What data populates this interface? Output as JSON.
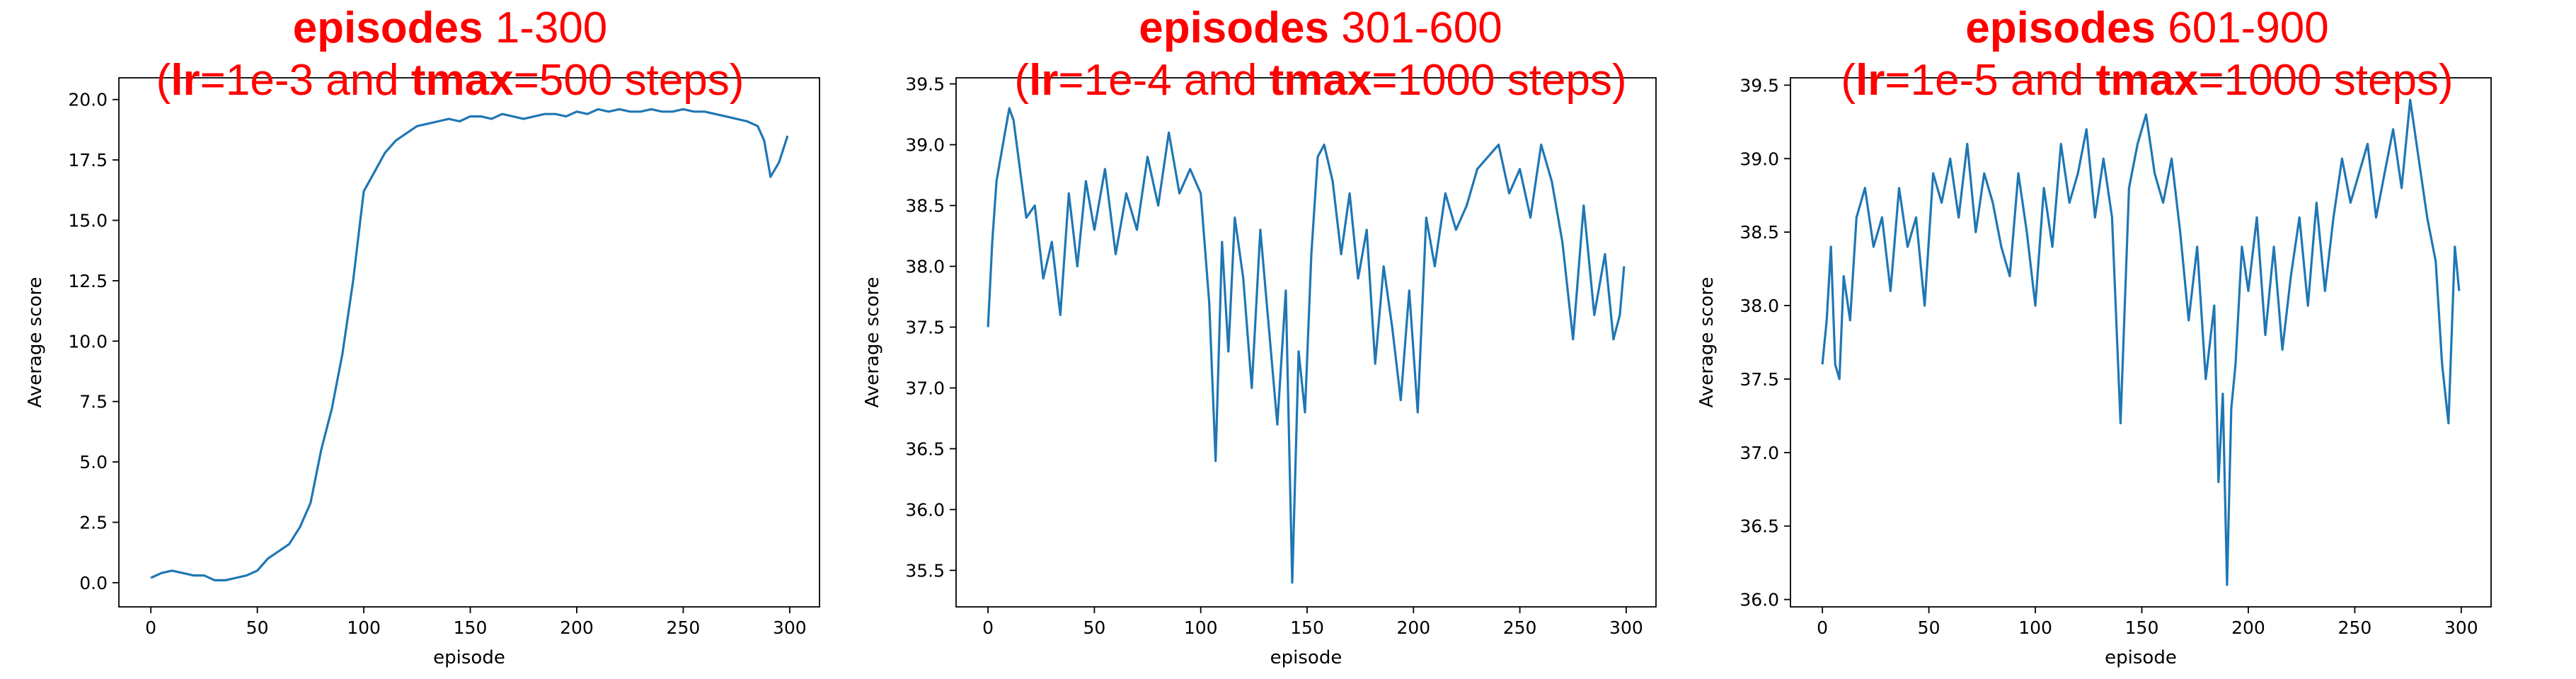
{
  "figure": {
    "title_color": "#ff0000",
    "line_color": "#1f77b4"
  },
  "chart_data": [
    {
      "type": "line",
      "title": "episodes 1-300",
      "title_bold": "episodes",
      "title_rest": "1-300",
      "subtitle_parts": [
        "(",
        "lr",
        "=1e-3 and ",
        "tmax",
        "=500 steps)"
      ],
      "xlabel": "episode",
      "ylabel": "Average score",
      "xlim": [
        -15,
        314
      ],
      "ylim": [
        -1.0,
        20.9
      ],
      "xticks": [
        0,
        50,
        100,
        150,
        200,
        250,
        300
      ],
      "yticks": [
        0.0,
        2.5,
        5.0,
        7.5,
        10.0,
        12.5,
        15.0,
        17.5,
        20.0
      ],
      "ytick_labels": [
        "0.0",
        "2.5",
        "5.0",
        "7.5",
        "10.0",
        "12.5",
        "15.0",
        "17.5",
        "20.0"
      ],
      "grid": false,
      "x": [
        0,
        5,
        10,
        15,
        20,
        25,
        30,
        35,
        40,
        45,
        50,
        55,
        60,
        65,
        70,
        75,
        80,
        85,
        90,
        95,
        100,
        105,
        110,
        115,
        120,
        125,
        130,
        135,
        140,
        145,
        150,
        155,
        160,
        165,
        170,
        175,
        180,
        185,
        190,
        195,
        200,
        205,
        210,
        215,
        220,
        225,
        230,
        235,
        240,
        245,
        250,
        255,
        260,
        265,
        270,
        275,
        280,
        285,
        288,
        291,
        295,
        299
      ],
      "series": [
        {
          "values": [
            0.2,
            0.4,
            0.5,
            0.4,
            0.3,
            0.3,
            0.1,
            0.1,
            0.2,
            0.3,
            0.5,
            1.0,
            1.3,
            1.6,
            2.3,
            3.3,
            5.5,
            7.2,
            9.5,
            12.5,
            16.2,
            17.0,
            17.8,
            18.3,
            18.6,
            18.9,
            19.0,
            19.1,
            19.2,
            19.1,
            19.3,
            19.3,
            19.2,
            19.4,
            19.3,
            19.2,
            19.3,
            19.4,
            19.4,
            19.3,
            19.5,
            19.4,
            19.6,
            19.5,
            19.6,
            19.5,
            19.5,
            19.6,
            19.5,
            19.5,
            19.6,
            19.5,
            19.5,
            19.4,
            19.3,
            19.2,
            19.1,
            18.9,
            18.3,
            16.8,
            17.4,
            18.5
          ]
        }
      ]
    },
    {
      "type": "line",
      "title": "episodes 301-600",
      "title_bold": "episodes",
      "title_rest": "301-600",
      "subtitle_parts": [
        "(",
        "lr",
        "=1e-4 and ",
        "tmax",
        "=1000 steps)"
      ],
      "xlabel": "episode",
      "ylabel": "Average score",
      "xlim": [
        -15,
        314
      ],
      "ylim": [
        35.2,
        39.55
      ],
      "xticks": [
        0,
        50,
        100,
        150,
        200,
        250,
        300
      ],
      "yticks": [
        35.5,
        36.0,
        36.5,
        37.0,
        37.5,
        38.0,
        38.5,
        39.0,
        39.5
      ],
      "ytick_labels": [
        "35.5",
        "36.0",
        "36.5",
        "37.0",
        "37.5",
        "38.0",
        "38.5",
        "39.0",
        "39.5"
      ],
      "grid": false,
      "x": [
        0,
        2,
        4,
        6,
        8,
        10,
        12,
        15,
        18,
        22,
        26,
        30,
        34,
        38,
        42,
        46,
        50,
        55,
        60,
        65,
        70,
        75,
        80,
        85,
        90,
        95,
        100,
        104,
        107,
        110,
        113,
        116,
        120,
        124,
        128,
        132,
        136,
        140,
        143,
        146,
        149,
        152,
        155,
        158,
        162,
        166,
        170,
        174,
        178,
        182,
        186,
        190,
        194,
        198,
        202,
        206,
        210,
        215,
        220,
        225,
        230,
        235,
        240,
        245,
        250,
        255,
        260,
        265,
        270,
        275,
        280,
        285,
        290,
        294,
        297,
        299
      ],
      "series": [
        {
          "values": [
            37.5,
            38.2,
            38.7,
            38.9,
            39.1,
            39.3,
            39.2,
            38.8,
            38.4,
            38.5,
            37.9,
            38.2,
            37.6,
            38.6,
            38.0,
            38.7,
            38.3,
            38.8,
            38.1,
            38.6,
            38.3,
            38.9,
            38.5,
            39.1,
            38.6,
            38.8,
            38.6,
            37.7,
            36.4,
            38.2,
            37.3,
            38.4,
            37.9,
            37.0,
            38.3,
            37.5,
            36.7,
            37.8,
            35.4,
            37.3,
            36.8,
            38.1,
            38.9,
            39.0,
            38.7,
            38.1,
            38.6,
            37.9,
            38.3,
            37.2,
            38.0,
            37.5,
            36.9,
            37.8,
            36.8,
            38.4,
            38.0,
            38.6,
            38.3,
            38.5,
            38.8,
            38.9,
            39.0,
            38.6,
            38.8,
            38.4,
            39.0,
            38.7,
            38.2,
            37.4,
            38.5,
            37.6,
            38.1,
            37.4,
            37.6,
            38.0
          ]
        }
      ]
    },
    {
      "type": "line",
      "title": "episodes 601-900",
      "title_bold": "episodes",
      "title_rest": "601-900",
      "subtitle_parts": [
        "(",
        "lr",
        "=1e-5 and ",
        "tmax",
        "=1000 steps)"
      ],
      "xlabel": "episode",
      "ylabel": "Average score",
      "xlim": [
        -15,
        314
      ],
      "ylim": [
        35.95,
        39.55
      ],
      "xticks": [
        0,
        50,
        100,
        150,
        200,
        250,
        300
      ],
      "yticks": [
        36.0,
        36.5,
        37.0,
        37.5,
        38.0,
        38.5,
        39.0,
        39.5
      ],
      "ytick_labels": [
        "36.0",
        "36.5",
        "37.0",
        "37.5",
        "38.0",
        "38.5",
        "39.0",
        "39.5"
      ],
      "grid": false,
      "x": [
        0,
        2,
        4,
        6,
        8,
        10,
        13,
        16,
        20,
        24,
        28,
        32,
        36,
        40,
        44,
        48,
        52,
        56,
        60,
        64,
        68,
        72,
        76,
        80,
        84,
        88,
        92,
        96,
        100,
        104,
        108,
        112,
        116,
        120,
        124,
        128,
        132,
        136,
        140,
        144,
        148,
        152,
        156,
        160,
        164,
        168,
        172,
        176,
        180,
        184,
        186,
        188,
        190,
        192,
        194,
        197,
        200,
        204,
        208,
        212,
        216,
        220,
        224,
        228,
        232,
        236,
        240,
        244,
        248,
        252,
        256,
        260,
        264,
        268,
        272,
        276,
        280,
        284,
        288,
        291,
        294,
        297,
        299
      ],
      "series": [
        {
          "values": [
            37.6,
            37.9,
            38.4,
            37.6,
            37.5,
            38.2,
            37.9,
            38.6,
            38.8,
            38.4,
            38.6,
            38.1,
            38.8,
            38.4,
            38.6,
            38.0,
            38.9,
            38.7,
            39.0,
            38.6,
            39.1,
            38.5,
            38.9,
            38.7,
            38.4,
            38.2,
            38.9,
            38.5,
            38.0,
            38.8,
            38.4,
            39.1,
            38.7,
            38.9,
            39.2,
            38.6,
            39.0,
            38.6,
            37.2,
            38.8,
            39.1,
            39.3,
            38.9,
            38.7,
            39.0,
            38.5,
            37.9,
            38.4,
            37.5,
            38.0,
            36.8,
            37.4,
            36.1,
            37.3,
            37.6,
            38.4,
            38.1,
            38.6,
            37.8,
            38.4,
            37.7,
            38.2,
            38.6,
            38.0,
            38.7,
            38.1,
            38.6,
            39.0,
            38.7,
            38.9,
            39.1,
            38.6,
            38.9,
            39.2,
            38.8,
            39.4,
            39.0,
            38.6,
            38.3,
            37.6,
            37.2,
            38.4,
            38.1
          ]
        }
      ]
    }
  ]
}
